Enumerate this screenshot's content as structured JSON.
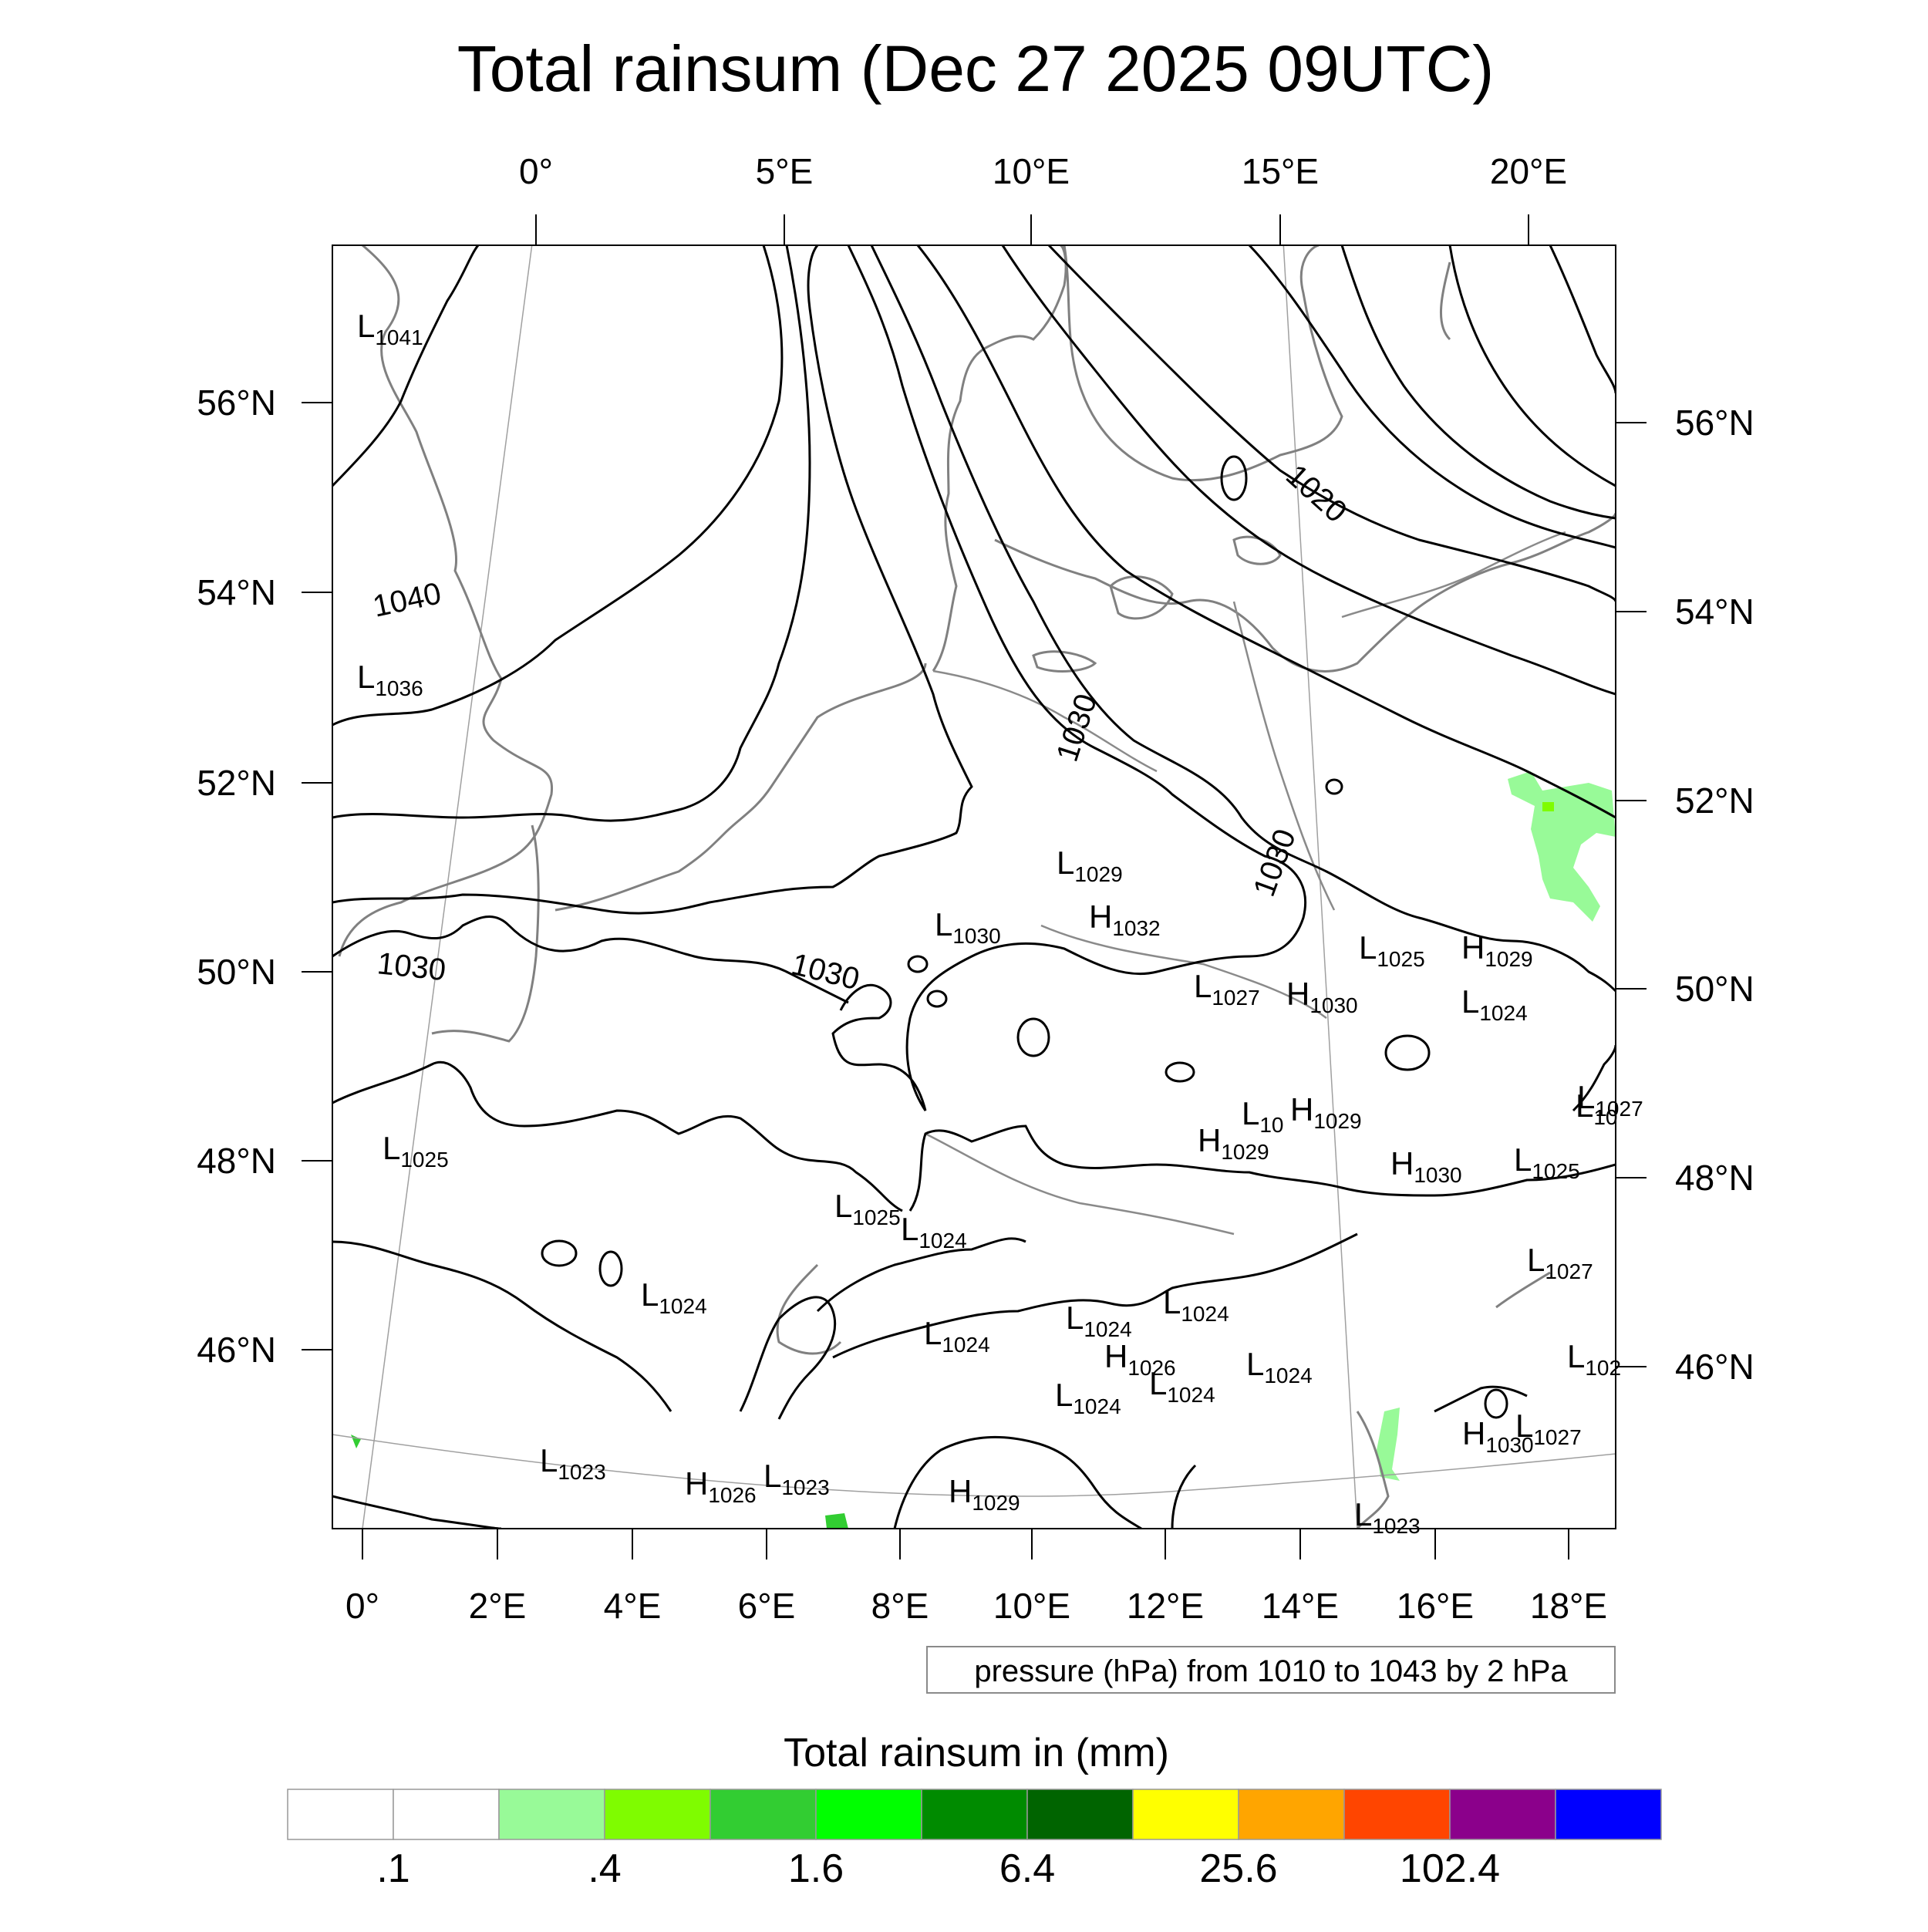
{
  "title": "Total rainsum (Dec 27 2025 09UTC)",
  "top_lon_labels": [
    "0°",
    "5°E",
    "10°E",
    "15°E",
    "20°E"
  ],
  "left_lat_labels": [
    "56°N",
    "54°N",
    "52°N",
    "50°N",
    "48°N",
    "46°N"
  ],
  "right_lat_labels": [
    "56°N",
    "54°N",
    "52°N",
    "50°N",
    "48°N",
    "46°N"
  ],
  "bottom_lon_labels": [
    "0°",
    "2°E",
    "4°E",
    "6°E",
    "8°E",
    "10°E",
    "12°E",
    "14°E",
    "16°E",
    "18°E"
  ],
  "isobar_labels": [
    "1040",
    "1030",
    "1030",
    "1030",
    "1030",
    "1020"
  ],
  "pressure_centers": [
    {
      "type": "L",
      "value": "1041"
    },
    {
      "type": "L",
      "value": "1036"
    },
    {
      "type": "L",
      "value": "1029"
    },
    {
      "type": "L",
      "value": "1030"
    },
    {
      "type": "H",
      "value": "1032"
    },
    {
      "type": "L",
      "value": "1025"
    },
    {
      "type": "H",
      "value": "1029"
    },
    {
      "type": "L",
      "value": "1027"
    },
    {
      "type": "H",
      "value": "1030"
    },
    {
      "type": "L",
      "value": "1024"
    },
    {
      "type": "L",
      "value": "1027"
    },
    {
      "type": "L",
      "value": "10"
    },
    {
      "type": "H",
      "value": "1029"
    },
    {
      "type": "H",
      "value": "1029"
    },
    {
      "type": "L",
      "value": "1025"
    },
    {
      "type": "H",
      "value": "1030"
    },
    {
      "type": "L",
      "value": "1025"
    },
    {
      "type": "L",
      "value": "1025"
    },
    {
      "type": "L",
      "value": "1024"
    },
    {
      "type": "L",
      "value": "1024"
    },
    {
      "type": "L",
      "value": "1027"
    },
    {
      "type": "L",
      "value": "1024"
    },
    {
      "type": "L",
      "value": "1024"
    },
    {
      "type": "H",
      "value": "1026"
    },
    {
      "type": "L",
      "value": "1024"
    },
    {
      "type": "L",
      "value": "102"
    },
    {
      "type": "L",
      "value": "1024"
    },
    {
      "type": "L",
      "value": "1024"
    },
    {
      "type": "L",
      "value": "1024"
    },
    {
      "type": "H",
      "value": "1030"
    },
    {
      "type": "L",
      "value": "1027"
    },
    {
      "type": "L",
      "value": "1023"
    },
    {
      "type": "H",
      "value": "1026"
    },
    {
      "type": "L",
      "value": "1023"
    },
    {
      "type": "H",
      "value": "1029"
    },
    {
      "type": "L",
      "value": "1023"
    },
    {
      "type": "L",
      "value": "10"
    }
  ],
  "info_box": "pressure (hPa) from 1010 to 1043 by 2 hPa",
  "legend": {
    "title": "Total rainsum in (mm)",
    "colors": [
      "#ffffff",
      "#ffffff",
      "#98fa98",
      "#7ffc00",
      "#32cd32",
      "#00ff00",
      "#008b00",
      "#006400",
      "#ffff00",
      "#ffa500",
      "#ff4500",
      "#8b008b",
      "#0000ff"
    ],
    "tick_labels": [
      ".1",
      ".4",
      "1.6",
      "6.4",
      "25.6",
      "102.4"
    ],
    "tick_after_box": [
      1,
      3,
      5,
      7,
      9,
      11
    ]
  }
}
